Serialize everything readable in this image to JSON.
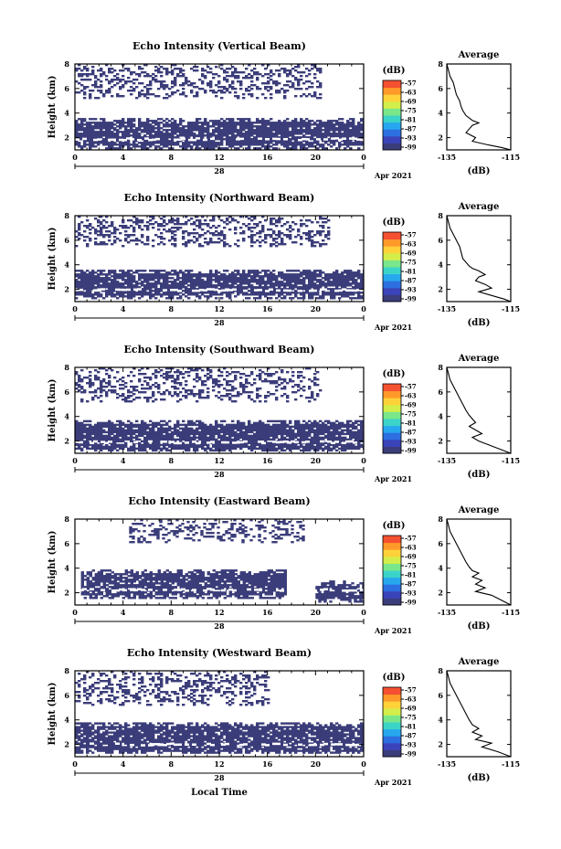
{
  "labels": {
    "height_axis": "Height (km)",
    "colorbar_unit": "(dB)",
    "average_title": "Average",
    "average_xlabel": "(dB)",
    "date_month_year": "Apr 2021",
    "date_day": "28",
    "local_time": "Local Time"
  },
  "colors": {
    "echo": "#3b3d7a",
    "colorbar": [
      "#3b3d7a",
      "#3a43b8",
      "#2d6fe0",
      "#27a8ee",
      "#3cd4c8",
      "#7ae68a",
      "#d3ee4a",
      "#ffd23a",
      "#ff9a2a",
      "#f35132"
    ]
  },
  "chart_data": [
    {
      "type": "heatmap",
      "beam": "Vertical",
      "title": "Echo Intensity (Vertical Beam)",
      "xlabel": "",
      "ylabel": "Height (km)",
      "x_ticks": [
        "0",
        "4",
        "8",
        "12",
        "16",
        "20",
        "0"
      ],
      "y_ticks": [
        "2",
        "4",
        "6",
        "8"
      ],
      "xlim": [
        0,
        24
      ],
      "ylim": [
        1,
        8
      ],
      "echo_regions_km": [
        {
          "t_start": 0,
          "t_end": 24,
          "z_bottom": 1.2,
          "z_top": 3.6
        },
        {
          "t_start": 0,
          "t_end": 20.5,
          "z_bottom": 5.2,
          "z_top": 8.0
        }
      ],
      "colorbar": {
        "label": "(dB)",
        "ticks": [
          "-57",
          "-63",
          "-69",
          "-75",
          "-81",
          "-87",
          "-93",
          "-99"
        ]
      },
      "average": {
        "title": "Average",
        "xlabel": "(dB)",
        "x_ticks": [
          "-135",
          "-115"
        ],
        "xlim": [
          -135,
          -115
        ],
        "y_ticks": [
          "2",
          "4",
          "6",
          "8"
        ],
        "ylim": [
          1,
          8
        ],
        "profile": [
          [
            -135,
            8.0
          ],
          [
            -134.5,
            7.5
          ],
          [
            -134,
            7.0
          ],
          [
            -133,
            6.5
          ],
          [
            -132.5,
            6.0
          ],
          [
            -132,
            5.5
          ],
          [
            -131,
            5.0
          ],
          [
            -130.5,
            4.5
          ],
          [
            -130,
            4.2
          ],
          [
            -129,
            3.8
          ],
          [
            -128,
            3.6
          ],
          [
            -127,
            3.4
          ],
          [
            -125,
            3.2
          ],
          [
            -127,
            3.0
          ],
          [
            -128,
            2.7
          ],
          [
            -129,
            2.4
          ],
          [
            -126,
            2.0
          ],
          [
            -127,
            1.7
          ],
          [
            -122,
            1.4
          ],
          [
            -118,
            1.2
          ],
          [
            -115,
            1.0
          ]
        ]
      }
    },
    {
      "type": "heatmap",
      "beam": "Northward",
      "title": "Echo Intensity (Northward Beam)",
      "xlabel": "",
      "ylabel": "Height (km)",
      "x_ticks": [
        "0",
        "4",
        "8",
        "12",
        "16",
        "20",
        "0"
      ],
      "y_ticks": [
        "2",
        "4",
        "6",
        "8"
      ],
      "xlim": [
        0,
        24
      ],
      "ylim": [
        1,
        8
      ],
      "echo_regions_km": [
        {
          "t_start": 0,
          "t_end": 24,
          "z_bottom": 1.3,
          "z_top": 3.6
        },
        {
          "t_start": 0,
          "t_end": 21,
          "z_bottom": 5.5,
          "z_top": 8.0
        }
      ],
      "colorbar": {
        "label": "(dB)",
        "ticks": [
          "-57",
          "-63",
          "-69",
          "-75",
          "-81",
          "-87",
          "-93",
          "-99"
        ]
      },
      "average": {
        "title": "Average",
        "xlabel": "(dB)",
        "x_ticks": [
          "-135",
          "-115"
        ],
        "xlim": [
          -135,
          -115
        ],
        "y_ticks": [
          "2",
          "4",
          "6",
          "8"
        ],
        "ylim": [
          1,
          8
        ],
        "profile": [
          [
            -135,
            8.0
          ],
          [
            -134.5,
            7.5
          ],
          [
            -134,
            7.0
          ],
          [
            -133,
            6.5
          ],
          [
            -132,
            6.0
          ],
          [
            -131,
            5.5
          ],
          [
            -130.5,
            5.0
          ],
          [
            -130,
            4.5
          ],
          [
            -129,
            4.2
          ],
          [
            -128,
            3.9
          ],
          [
            -127,
            3.7
          ],
          [
            -125,
            3.5
          ],
          [
            -123,
            3.2
          ],
          [
            -125,
            3.0
          ],
          [
            -126,
            2.7
          ],
          [
            -123,
            2.4
          ],
          [
            -121,
            2.1
          ],
          [
            -125,
            1.8
          ],
          [
            -121,
            1.5
          ],
          [
            -117,
            1.2
          ],
          [
            -115,
            1.0
          ]
        ]
      }
    },
    {
      "type": "heatmap",
      "beam": "Southward",
      "title": "Echo Intensity (Southward Beam)",
      "xlabel": "",
      "ylabel": "Height (km)",
      "x_ticks": [
        "0",
        "4",
        "8",
        "12",
        "16",
        "20",
        "0"
      ],
      "y_ticks": [
        "2",
        "4",
        "6",
        "8"
      ],
      "xlim": [
        0,
        24
      ],
      "ylim": [
        1,
        8
      ],
      "echo_regions_km": [
        {
          "t_start": 0,
          "t_end": 24,
          "z_bottom": 1.2,
          "z_top": 3.7
        },
        {
          "t_start": 0,
          "t_end": 20.5,
          "z_bottom": 5.3,
          "z_top": 8.0
        }
      ],
      "colorbar": {
        "label": "(dB)",
        "ticks": [
          "-57",
          "-63",
          "-69",
          "-75",
          "-81",
          "-87",
          "-93",
          "-99"
        ]
      },
      "average": {
        "title": "Average",
        "xlabel": "(dB)",
        "x_ticks": [
          "-135",
          "-115"
        ],
        "xlim": [
          -135,
          -115
        ],
        "y_ticks": [
          "2",
          "4",
          "6",
          "8"
        ],
        "ylim": [
          1,
          8
        ],
        "profile": [
          [
            -135,
            8.0
          ],
          [
            -134.5,
            7.5
          ],
          [
            -134,
            7.0
          ],
          [
            -133,
            6.5
          ],
          [
            -132,
            6.0
          ],
          [
            -131,
            5.5
          ],
          [
            -130,
            5.0
          ],
          [
            -129,
            4.5
          ],
          [
            -128,
            4.1
          ],
          [
            -127,
            3.8
          ],
          [
            -126,
            3.5
          ],
          [
            -128,
            3.2
          ],
          [
            -126,
            2.9
          ],
          [
            -124,
            2.6
          ],
          [
            -127,
            2.3
          ],
          [
            -125,
            2.0
          ],
          [
            -122,
            1.7
          ],
          [
            -118,
            1.3
          ],
          [
            -115,
            1.0
          ]
        ]
      }
    },
    {
      "type": "heatmap",
      "beam": "Eastward",
      "title": "Echo Intensity (Eastward Beam)",
      "xlabel": "",
      "ylabel": "Height (km)",
      "x_ticks": [
        "0",
        "4",
        "8",
        "12",
        "16",
        "20",
        "0"
      ],
      "y_ticks": [
        "2",
        "4",
        "6",
        "8"
      ],
      "xlim": [
        0,
        24
      ],
      "ylim": [
        1,
        8
      ],
      "echo_regions_km": [
        {
          "t_start": 0.5,
          "t_end": 17.5,
          "z_bottom": 1.6,
          "z_top": 3.9
        },
        {
          "t_start": 20,
          "t_end": 24,
          "z_bottom": 1.3,
          "z_top": 3.0
        },
        {
          "t_start": 4.5,
          "t_end": 19,
          "z_bottom": 6.2,
          "z_top": 8.0
        }
      ],
      "colorbar": {
        "label": "(dB)",
        "ticks": [
          "-57",
          "-63",
          "-69",
          "-75",
          "-81",
          "-87",
          "-93",
          "-99"
        ]
      },
      "average": {
        "title": "Average",
        "xlabel": "(dB)",
        "x_ticks": [
          "-135",
          "-115"
        ],
        "xlim": [
          -135,
          -115
        ],
        "y_ticks": [
          "2",
          "4",
          "6",
          "8"
        ],
        "ylim": [
          1,
          8
        ],
        "profile": [
          [
            -135,
            8.0
          ],
          [
            -134.5,
            7.5
          ],
          [
            -134,
            7.0
          ],
          [
            -133,
            6.5
          ],
          [
            -132,
            6.0
          ],
          [
            -131,
            5.5
          ],
          [
            -130,
            5.0
          ],
          [
            -129,
            4.5
          ],
          [
            -128,
            4.1
          ],
          [
            -127,
            3.8
          ],
          [
            -125,
            3.6
          ],
          [
            -127,
            3.3
          ],
          [
            -124,
            3.0
          ],
          [
            -126,
            2.7
          ],
          [
            -123,
            2.4
          ],
          [
            -126,
            2.1
          ],
          [
            -121,
            1.8
          ],
          [
            -118,
            1.4
          ],
          [
            -115,
            1.0
          ]
        ]
      }
    },
    {
      "type": "heatmap",
      "beam": "Westward",
      "title": "Echo Intensity (Westward Beam)",
      "xlabel": "Local Time",
      "ylabel": "Height (km)",
      "x_ticks": [
        "0",
        "4",
        "8",
        "12",
        "16",
        "20",
        "0"
      ],
      "y_ticks": [
        "2",
        "4",
        "6",
        "8"
      ],
      "xlim": [
        0,
        24
      ],
      "ylim": [
        1,
        8
      ],
      "echo_regions_km": [
        {
          "t_start": 0,
          "t_end": 24,
          "z_bottom": 1.3,
          "z_top": 3.8
        },
        {
          "t_start": 0,
          "t_end": 16,
          "z_bottom": 5.3,
          "z_top": 8.0
        }
      ],
      "colorbar": {
        "label": "(dB)",
        "ticks": [
          "-57",
          "-63",
          "-69",
          "-75",
          "-81",
          "-87",
          "-93",
          "-99"
        ]
      },
      "average": {
        "title": "Average",
        "xlabel": "(dB)",
        "x_ticks": [
          "-135",
          "-115"
        ],
        "xlim": [
          -135,
          -115
        ],
        "y_ticks": [
          "2",
          "4",
          "6",
          "8"
        ],
        "ylim": [
          1,
          8
        ],
        "profile": [
          [
            -135,
            8.0
          ],
          [
            -134.5,
            7.5
          ],
          [
            -134,
            7.0
          ],
          [
            -133,
            6.5
          ],
          [
            -132,
            6.0
          ],
          [
            -131,
            5.5
          ],
          [
            -130,
            5.0
          ],
          [
            -129,
            4.5
          ],
          [
            -128,
            4.0
          ],
          [
            -127,
            3.6
          ],
          [
            -125,
            3.3
          ],
          [
            -127,
            3.0
          ],
          [
            -124,
            2.7
          ],
          [
            -126,
            2.4
          ],
          [
            -121,
            2.1
          ],
          [
            -124,
            1.8
          ],
          [
            -119,
            1.4
          ],
          [
            -115,
            1.0
          ]
        ]
      }
    }
  ]
}
